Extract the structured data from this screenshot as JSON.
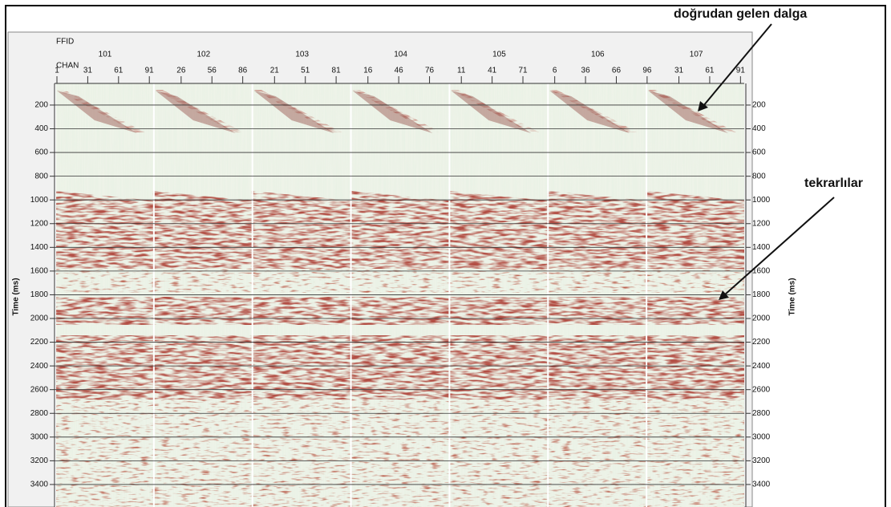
{
  "chart_data": {
    "type": "seismic",
    "header_labels": [
      "FFID",
      "CHAN"
    ],
    "ffid": [
      101,
      102,
      103,
      104,
      105,
      106,
      107
    ],
    "channel_ticks": [
      [
        1,
        31,
        61,
        91
      ],
      [
        26,
        56,
        86
      ],
      [
        21,
        51,
        81
      ],
      [
        16,
        46,
        76
      ],
      [
        11,
        41,
        71
      ],
      [
        6,
        36,
        66,
        96
      ],
      [
        31,
        61,
        91
      ]
    ],
    "y_label": "Time (ms)",
    "ylim": [
      0,
      3600
    ],
    "yticks": [
      200,
      400,
      600,
      800,
      1000,
      1200,
      1400,
      1600,
      1800,
      2000,
      2200,
      2400,
      2600,
      2800,
      3000,
      3200,
      3400
    ],
    "grid": true,
    "annotations": [
      "doğrudan gelen dalga",
      "tekrarlılar"
    ]
  }
}
